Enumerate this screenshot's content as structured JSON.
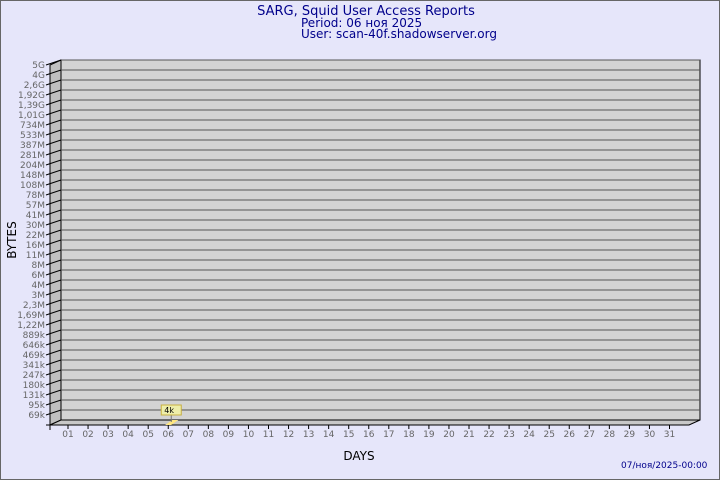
{
  "header": {
    "title": "SARG, Squid User Access Reports",
    "period": "Period: 06 ноя 2025",
    "user": "User: scan-40f.shadowserver.org"
  },
  "footer": {
    "timestamp": "07/ноя/2025-00:00"
  },
  "colors": {
    "background": "#e6e6fa",
    "plot": "#d3d3d3",
    "bar": "#ffe680",
    "label_box": "#eeeeaa",
    "text": "#00008b"
  },
  "chart_data": {
    "type": "bar",
    "xlabel": "DAYS",
    "ylabel": "BYTES",
    "y_scale": "log",
    "grid": true,
    "y_tick_labels": [
      "5G",
      "4G",
      "2,6G",
      "1,92G",
      "1,39G",
      "1,01G",
      "734M",
      "533M",
      "387M",
      "281M",
      "204M",
      "148M",
      "108M",
      "78M",
      "57M",
      "41M",
      "30M",
      "22M",
      "16M",
      "11M",
      "8M",
      "6M",
      "4M",
      "3M",
      "2,3M",
      "1,69M",
      "1,22M",
      "889k",
      "646k",
      "469k",
      "341k",
      "247k",
      "180k",
      "131k",
      "95k",
      "69k"
    ],
    "categories": [
      "01",
      "02",
      "03",
      "04",
      "05",
      "06",
      "07",
      "08",
      "09",
      "10",
      "11",
      "12",
      "13",
      "14",
      "15",
      "16",
      "17",
      "18",
      "19",
      "20",
      "21",
      "22",
      "23",
      "24",
      "25",
      "26",
      "27",
      "28",
      "29",
      "30",
      "31"
    ],
    "bars": [
      {
        "day": "06",
        "value": 4000,
        "label": "4k"
      }
    ]
  }
}
